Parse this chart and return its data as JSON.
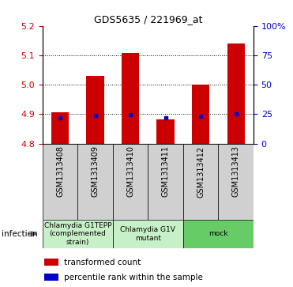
{
  "title": "GDS5635 / 221969_at",
  "samples": [
    "GSM1313408",
    "GSM1313409",
    "GSM1313410",
    "GSM1313411",
    "GSM1313412",
    "GSM1313413"
  ],
  "red_top": [
    4.905,
    5.03,
    5.107,
    4.882,
    5.0,
    5.14
  ],
  "red_bottom": [
    4.8,
    4.8,
    4.8,
    4.8,
    4.8,
    4.8
  ],
  "blue_vals": [
    4.888,
    4.895,
    4.898,
    4.887,
    4.893,
    4.901
  ],
  "ylim": [
    4.8,
    5.2
  ],
  "yticks_left": [
    4.8,
    4.9,
    5.0,
    5.1,
    5.2
  ],
  "yticks_right": [
    0,
    25,
    50,
    75,
    100
  ],
  "ytick_right_labels": [
    "0",
    "25",
    "50",
    "75",
    "100%"
  ],
  "left_color": "#cc0000",
  "right_color": "#0000cc",
  "bar_color": "#cc0000",
  "blue_color": "#0000cc",
  "groups": [
    {
      "label": "Chlamydia G1TEPP\n(complemented\nstrain)",
      "start": 0,
      "end": 2,
      "color": "#c8f0c8"
    },
    {
      "label": "Chlamydia G1V\nmutant",
      "start": 2,
      "end": 4,
      "color": "#c8f0c8"
    },
    {
      "label": "mock",
      "start": 4,
      "end": 6,
      "color": "#66cc66"
    }
  ],
  "infection_label": "infection",
  "legend_red": "transformed count",
  "legend_blue": "percentile rank within the sample",
  "bar_width": 0.5,
  "dotted_yticks": [
    4.9,
    5.0,
    5.1
  ],
  "sample_label_fontsize": 7,
  "group_label_fontsize": 6.5,
  "legend_fontsize": 7.5,
  "title_fontsize": 9
}
